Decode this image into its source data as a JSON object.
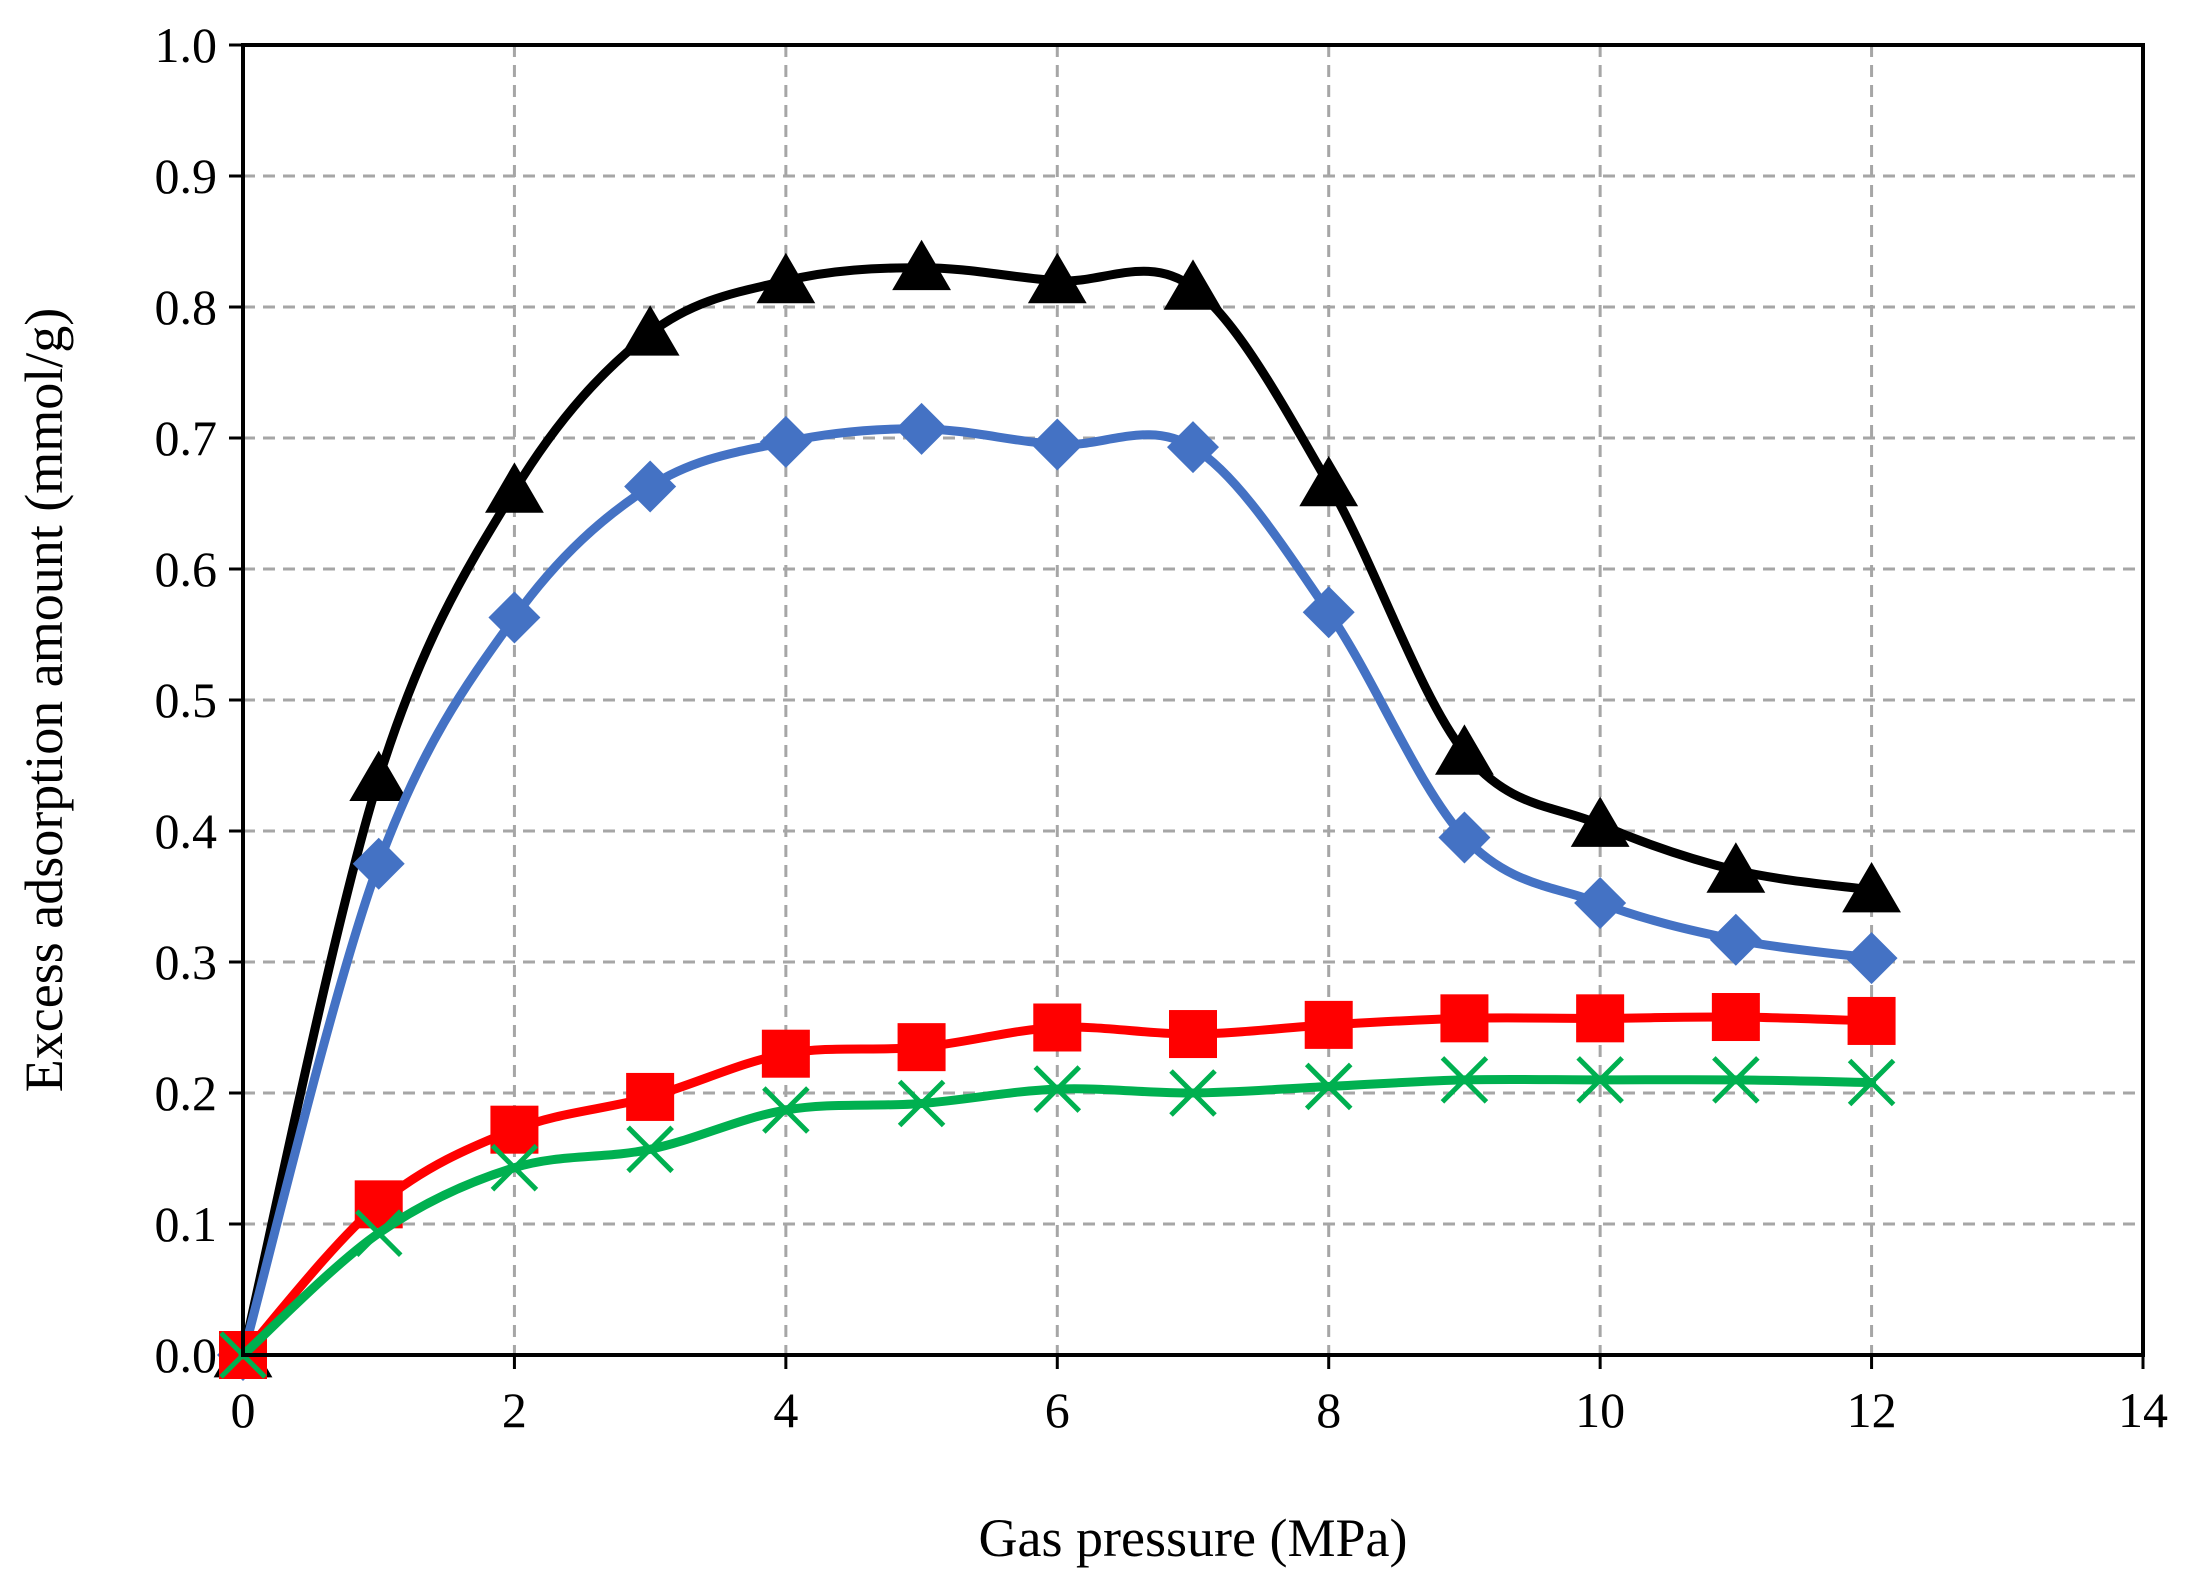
{
  "chart_data": {
    "type": "line",
    "title": "",
    "xlabel": "Gas pressure (MPa)",
    "ylabel": "Excess adsorption amount (mmol/g)",
    "xlim": [
      0,
      14
    ],
    "ylim": [
      0.0,
      1.0
    ],
    "x_ticks": [
      "0",
      "2",
      "4",
      "6",
      "8",
      "10",
      "12",
      "14"
    ],
    "y_ticks": [
      "0.0",
      "0.1",
      "0.2",
      "0.3",
      "0.4",
      "0.5",
      "0.6",
      "0.7",
      "0.8",
      "0.9",
      "1.0"
    ],
    "grid": true,
    "legend": "none",
    "series": [
      {
        "name": "black-triangle",
        "color": "#000000",
        "marker": "triangle",
        "x": [
          0,
          1,
          2,
          3,
          4,
          5,
          6,
          7,
          8,
          9,
          10,
          11,
          12
        ],
        "values": [
          0.0,
          0.44,
          0.66,
          0.78,
          0.82,
          0.83,
          0.82,
          0.815,
          0.665,
          0.46,
          0.405,
          0.37,
          0.355
        ]
      },
      {
        "name": "blue-diamond",
        "color": "#4472C4",
        "marker": "diamond",
        "x": [
          0,
          1,
          2,
          3,
          4,
          5,
          6,
          7,
          8,
          9,
          10,
          11,
          12
        ],
        "values": [
          0.0,
          0.375,
          0.563,
          0.663,
          0.697,
          0.707,
          0.695,
          0.693,
          0.567,
          0.395,
          0.345,
          0.317,
          0.303
        ]
      },
      {
        "name": "red-square",
        "color": "#FF0000",
        "marker": "square",
        "x": [
          0,
          1,
          2,
          3,
          4,
          5,
          6,
          7,
          8,
          9,
          10,
          11,
          12
        ],
        "values": [
          0.0,
          0.115,
          0.172,
          0.197,
          0.23,
          0.235,
          0.25,
          0.245,
          0.252,
          0.257,
          0.257,
          0.258,
          0.255
        ]
      },
      {
        "name": "green-x",
        "color": "#00B050",
        "marker": "x",
        "x": [
          0,
          1,
          2,
          3,
          4,
          5,
          6,
          7,
          8,
          9,
          10,
          11,
          12
        ],
        "values": [
          0.0,
          0.093,
          0.143,
          0.157,
          0.187,
          0.192,
          0.203,
          0.2,
          0.205,
          0.21,
          0.21,
          0.21,
          0.208
        ]
      }
    ]
  }
}
